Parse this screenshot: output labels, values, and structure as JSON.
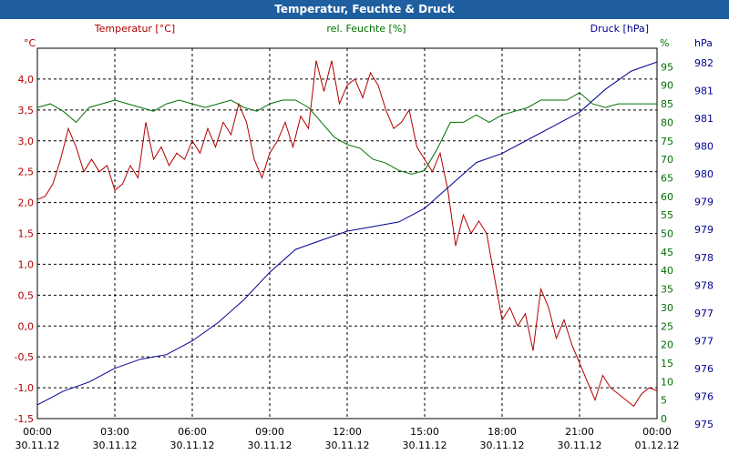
{
  "chart_data": {
    "type": "line",
    "title": "Temperatur, Feuchte & Druck",
    "colors": {
      "temperature": "#b00000",
      "humidity": "#007000",
      "pressure": "#000090",
      "title_bar": "#1f5fa0",
      "grid": "#000000"
    },
    "x": {
      "labels": [
        "00:00",
        "03:00",
        "06:00",
        "09:00",
        "12:00",
        "15:00",
        "18:00",
        "21:00",
        "00:00"
      ],
      "dates": [
        "30.11.12",
        "30.11.12",
        "30.11.12",
        "30.11.12",
        "30.11.12",
        "30.11.12",
        "30.11.12",
        "30.11.12",
        "01.12.12"
      ],
      "range_hours": [
        0,
        24
      ]
    },
    "axes": {
      "temperature": {
        "label": "Temperatur [°C]",
        "unit": "°C",
        "range": [
          -1.5,
          4.5
        ],
        "ticks": [
          "4,0",
          "3,5",
          "3,0",
          "2,5",
          "2,0",
          "1,5",
          "1,0",
          "0,5",
          "0,0",
          "-0,5",
          "-1,0",
          "-1,5"
        ]
      },
      "humidity": {
        "label": "rel. Feuchte [%]",
        "unit": "%",
        "range": [
          0,
          100
        ],
        "ticks": [
          "95",
          "90",
          "85",
          "80",
          "75",
          "70",
          "65",
          "60",
          "55",
          "50",
          "45",
          "40",
          "35",
          "30",
          "25",
          "20",
          "15",
          "10",
          "5",
          "0"
        ]
      },
      "pressure": {
        "label": "Druck [hPa]",
        "unit": "hPa",
        "range": [
          974.5,
          982.6
        ],
        "ticks": [
          "982",
          "981",
          "981",
          "980",
          "980",
          "979",
          "979",
          "978",
          "978",
          "977",
          "977",
          "976",
          "976",
          "975"
        ]
      }
    },
    "series": [
      {
        "name": "Temperatur",
        "axis": "temperature",
        "hours": [
          0,
          0.3,
          0.6,
          0.9,
          1.2,
          1.5,
          1.8,
          2.1,
          2.4,
          2.7,
          3.0,
          3.3,
          3.6,
          3.9,
          4.2,
          4.5,
          4.8,
          5.1,
          5.4,
          5.7,
          6.0,
          6.3,
          6.6,
          6.9,
          7.2,
          7.5,
          7.8,
          8.1,
          8.4,
          8.7,
          9.0,
          9.3,
          9.6,
          9.9,
          10.2,
          10.5,
          10.8,
          11.1,
          11.4,
          11.7,
          12.0,
          12.3,
          12.6,
          12.9,
          13.2,
          13.5,
          13.8,
          14.1,
          14.4,
          14.7,
          15.0,
          15.3,
          15.6,
          15.9,
          16.2,
          16.5,
          16.8,
          17.1,
          17.4,
          17.7,
          18.0,
          18.3,
          18.6,
          18.9,
          19.2,
          19.5,
          19.8,
          20.1,
          20.4,
          20.7,
          21.0,
          21.3,
          21.6,
          21.9,
          22.2,
          22.5,
          22.8,
          23.1,
          23.4,
          23.7,
          24.0
        ],
        "values": [
          2.05,
          2.1,
          2.3,
          2.7,
          3.2,
          2.9,
          2.5,
          2.7,
          2.5,
          2.6,
          2.2,
          2.3,
          2.6,
          2.4,
          3.3,
          2.7,
          2.9,
          2.6,
          2.8,
          2.7,
          3.0,
          2.8,
          3.2,
          2.9,
          3.3,
          3.1,
          3.6,
          3.3,
          2.7,
          2.4,
          2.8,
          3.0,
          3.3,
          2.9,
          3.4,
          3.2,
          4.3,
          3.8,
          4.3,
          3.6,
          3.9,
          4.0,
          3.7,
          4.1,
          3.9,
          3.5,
          3.2,
          3.3,
          3.5,
          2.9,
          2.7,
          2.5,
          2.8,
          2.2,
          1.3,
          1.8,
          1.5,
          1.7,
          1.5,
          0.8,
          0.1,
          0.3,
          0.0,
          0.2,
          -0.4,
          0.6,
          0.3,
          -0.2,
          0.1,
          -0.3,
          -0.6,
          -0.9,
          -1.2,
          -0.8,
          -1.0,
          -1.1,
          -1.2,
          -1.3,
          -1.1,
          -1.0,
          -1.05
        ]
      },
      {
        "name": "rel. Feuchte",
        "axis": "humidity",
        "hours": [
          0,
          0.5,
          1.0,
          1.5,
          2.0,
          2.5,
          3.0,
          3.5,
          4.0,
          4.5,
          5.0,
          5.5,
          6.0,
          6.5,
          7.0,
          7.5,
          8.0,
          8.5,
          9.0,
          9.5,
          10.0,
          10.5,
          11.0,
          11.5,
          12.0,
          12.5,
          13.0,
          13.5,
          14.0,
          14.5,
          15.0,
          15.5,
          16.0,
          16.5,
          17.0,
          17.5,
          18.0,
          18.5,
          19.0,
          19.5,
          20.0,
          20.5,
          21.0,
          21.5,
          22.0,
          22.5,
          23.0,
          23.5,
          24.0
        ],
        "values": [
          84,
          85,
          83,
          80,
          84,
          85,
          86,
          85,
          84,
          83,
          85,
          86,
          85,
          84,
          85,
          86,
          84,
          83,
          85,
          86,
          86,
          84,
          80,
          76,
          74,
          73,
          70,
          69,
          67,
          66,
          67,
          73,
          80,
          80,
          82,
          80,
          82,
          83,
          84,
          86,
          86,
          86,
          88,
          85,
          84,
          85,
          85,
          85,
          85
        ]
      },
      {
        "name": "Druck",
        "axis": "pressure",
        "hours": [
          0,
          1,
          2,
          3,
          4,
          5,
          6,
          7,
          8,
          9,
          10,
          11,
          12,
          13,
          14,
          15,
          16,
          17,
          18,
          19,
          20,
          21,
          22,
          23,
          24
        ],
        "values": [
          974.8,
          975.1,
          975.3,
          975.6,
          975.8,
          975.9,
          976.2,
          976.6,
          977.1,
          977.7,
          978.2,
          978.4,
          978.6,
          978.7,
          978.8,
          979.1,
          979.6,
          980.1,
          980.3,
          980.6,
          980.9,
          981.2,
          981.7,
          982.1,
          982.3
        ]
      }
    ]
  }
}
